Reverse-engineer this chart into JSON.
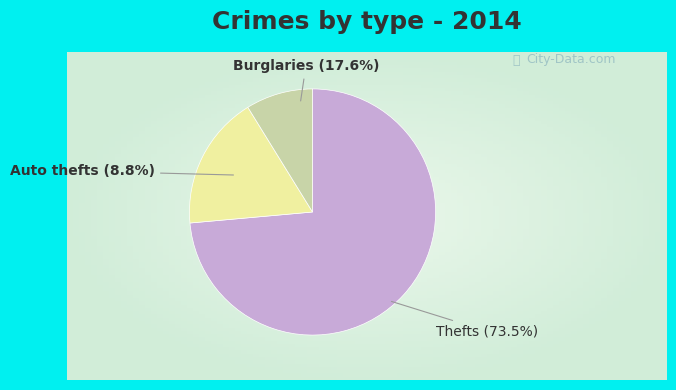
{
  "title": "Crimes by type - 2014",
  "slices": [
    {
      "label": "Thefts (73.5%)",
      "value": 73.5,
      "color": "#c8aad8"
    },
    {
      "label": "Burglaries (17.6%)",
      "value": 17.6,
      "color": "#f0f0a0"
    },
    {
      "label": "Auto thefts (8.8%)",
      "value": 8.8,
      "color": "#c8d4a8"
    }
  ],
  "cyan_color": "#00f0f0",
  "body_bg": "#d8edd8",
  "title_fontsize": 18,
  "label_fontsize": 10,
  "watermark": "City-Data.com",
  "start_angle": 90,
  "title_color": "#333333",
  "label_color": "#333333"
}
